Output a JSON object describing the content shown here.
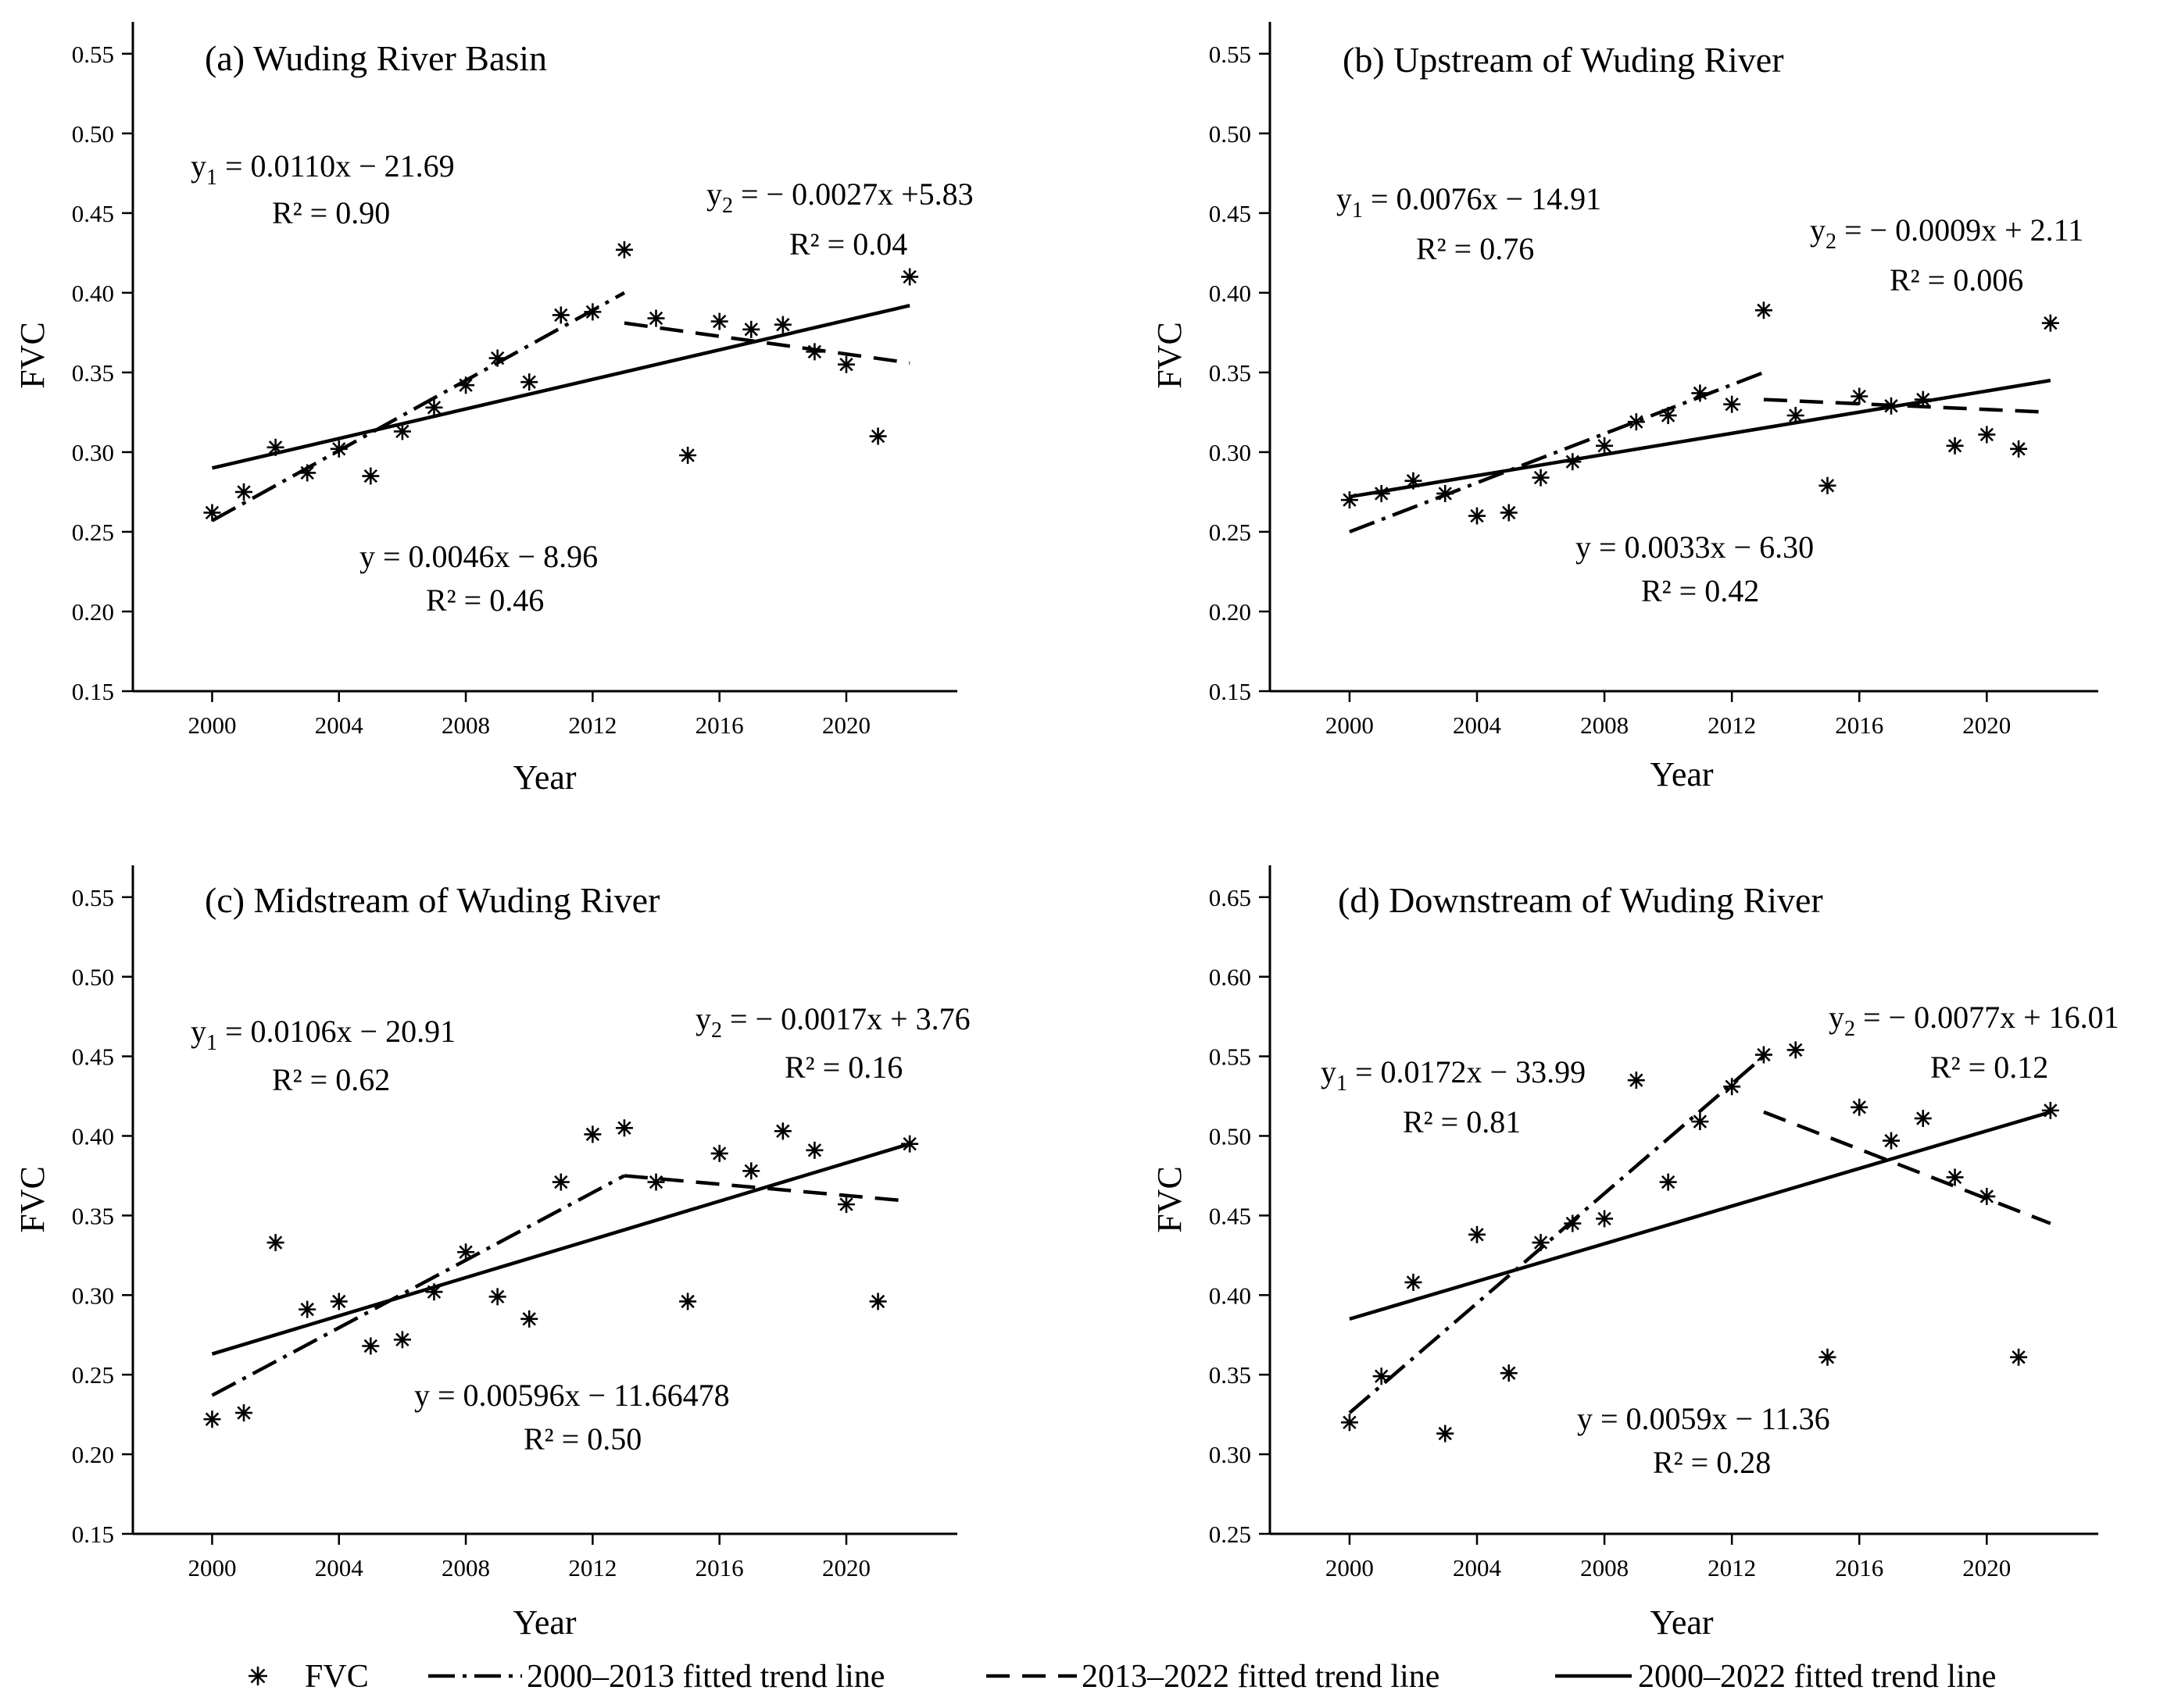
{
  "figure": {
    "legend": {
      "fvc": "FVC",
      "trend_2000_2013": "2000–2013 fitted trend line",
      "trend_2013_2022": "2013–2022 fitted trend line",
      "trend_2000_2022": "2000–2022 fitted trend line"
    }
  },
  "chart_data": [
    {
      "type": "scatter",
      "panel": "a",
      "title": "(a) Wuding River Basin",
      "xlabel": "Year",
      "ylabel": "FVC",
      "xlim": [
        1997.5,
        2023.5
      ],
      "ylim": [
        0.15,
        0.57
      ],
      "xticks": [
        2000,
        2004,
        2008,
        2012,
        2016,
        2020
      ],
      "xtick_labels": [
        "2000",
        "2004",
        "2008",
        "2012",
        "2016",
        "2020"
      ],
      "yticks": [
        0.15,
        0.2,
        0.25,
        0.3,
        0.35,
        0.4,
        0.45,
        0.5,
        0.55
      ],
      "ytick_labels": [
        "0.15",
        "0.20",
        "0.25",
        "0.30",
        "0.35",
        "0.40",
        "0.45",
        "0.50",
        "0.55"
      ],
      "x": [
        2000,
        2001,
        2002,
        2003,
        2004,
        2005,
        2006,
        2007,
        2008,
        2009,
        2010,
        2011,
        2012,
        2013,
        2014,
        2015,
        2016,
        2017,
        2018,
        2019,
        2020,
        2021,
        2022
      ],
      "fvc": [
        0.262,
        0.275,
        0.303,
        0.287,
        0.302,
        0.285,
        0.313,
        0.328,
        0.342,
        0.359,
        0.344,
        0.386,
        0.388,
        0.427,
        0.384,
        0.298,
        0.382,
        0.377,
        0.38,
        0.363,
        0.355,
        0.31,
        0.41
      ],
      "trend_lines": [
        {
          "name": "2000–2013 fitted trend line",
          "style": "dashdot",
          "x": [
            2000,
            2013
          ],
          "y": [
            0.257,
            0.4
          ]
        },
        {
          "name": "2013–2022 fitted trend line",
          "style": "dashed",
          "x": [
            2013,
            2022
          ],
          "y": [
            0.381,
            0.356
          ]
        },
        {
          "name": "2000–2022 fitted trend line",
          "style": "solid",
          "x": [
            2000,
            2022
          ],
          "y": [
            0.29,
            0.392
          ]
        }
      ],
      "annotations": {
        "eq1_y": "y",
        "eq1_sub": "1",
        "eq1_rest": " = 0.0110x − 21.69",
        "r2_1": "R² = 0.90",
        "eq2_y": "y",
        "eq2_sub": "2",
        "eq2_rest": " = − 0.0027x +5.83",
        "r2_2": "R² = 0.04",
        "eq3": "y = 0.0046x − 8.96",
        "r2_3": "R² = 0.46"
      }
    },
    {
      "type": "scatter",
      "panel": "b",
      "title": "(b) Upstream of  Wuding River",
      "xlabel": "Year",
      "ylabel": "FVC",
      "xlim": [
        1997.5,
        2023.5
      ],
      "ylim": [
        0.15,
        0.57
      ],
      "xticks": [
        2000,
        2004,
        2008,
        2012,
        2016,
        2020
      ],
      "xtick_labels": [
        "2000",
        "2004",
        "2008",
        "2012",
        "2016",
        "2020"
      ],
      "yticks": [
        0.15,
        0.2,
        0.25,
        0.3,
        0.35,
        0.4,
        0.45,
        0.5,
        0.55
      ],
      "ytick_labels": [
        "0.15",
        "0.20",
        "0.25",
        "0.30",
        "0.35",
        "0.40",
        "0.45",
        "0.50",
        "0.55"
      ],
      "x": [
        2000,
        2001,
        2002,
        2003,
        2004,
        2005,
        2006,
        2007,
        2008,
        2009,
        2010,
        2011,
        2012,
        2013,
        2014,
        2015,
        2016,
        2017,
        2018,
        2019,
        2020,
        2021,
        2022
      ],
      "fvc": [
        0.27,
        0.274,
        0.282,
        0.274,
        0.26,
        0.262,
        0.284,
        0.294,
        0.304,
        0.319,
        0.323,
        0.337,
        0.33,
        0.389,
        0.323,
        0.279,
        0.335,
        0.329,
        0.333,
        0.304,
        0.311,
        0.302,
        0.381
      ],
      "trend_lines": [
        {
          "name": "2000–2013 fitted trend line",
          "style": "dashdot",
          "x": [
            2000,
            2013
          ],
          "y": [
            0.25,
            0.35
          ]
        },
        {
          "name": "2013–2022 fitted trend line",
          "style": "dashed",
          "x": [
            2013,
            2022
          ],
          "y": [
            0.333,
            0.325
          ]
        },
        {
          "name": "2000–2022 fitted trend line",
          "style": "solid",
          "x": [
            2000,
            2022
          ],
          "y": [
            0.272,
            0.345
          ]
        }
      ],
      "annotations": {
        "eq1_y": "y",
        "eq1_sub": "1",
        "eq1_rest": " = 0.0076x − 14.91",
        "r2_1": "R² = 0.76",
        "eq2_y": "y",
        "eq2_sub": "2",
        "eq2_rest": " = − 0.0009x + 2.11",
        "r2_2": "R² = 0.006",
        "eq3": "y = 0.0033x − 6.30",
        "r2_3": "R² = 0.42"
      }
    },
    {
      "type": "scatter",
      "panel": "c",
      "title": "(c) Midstream of Wuding River",
      "xlabel": "Year",
      "ylabel": "FVC",
      "xlim": [
        1997.5,
        2023.5
      ],
      "ylim": [
        0.15,
        0.57
      ],
      "xticks": [
        2000,
        2004,
        2008,
        2012,
        2016,
        2020
      ],
      "xtick_labels": [
        "2000",
        "2004",
        "2008",
        "2012",
        "2016",
        "2020"
      ],
      "yticks": [
        0.15,
        0.2,
        0.25,
        0.3,
        0.35,
        0.4,
        0.45,
        0.5,
        0.55
      ],
      "ytick_labels": [
        "0.15",
        "0.20",
        "0.25",
        "0.30",
        "0.35",
        "0.40",
        "0.45",
        "0.50",
        "0.55"
      ],
      "x": [
        2000,
        2001,
        2002,
        2003,
        2004,
        2005,
        2006,
        2007,
        2008,
        2009,
        2010,
        2011,
        2012,
        2013,
        2014,
        2015,
        2016,
        2017,
        2018,
        2019,
        2020,
        2021,
        2022
      ],
      "fvc": [
        0.222,
        0.226,
        0.333,
        0.291,
        0.296,
        0.268,
        0.272,
        0.302,
        0.327,
        0.299,
        0.285,
        0.371,
        0.401,
        0.405,
        0.371,
        0.296,
        0.389,
        0.378,
        0.403,
        0.391,
        0.357,
        0.296,
        0.395
      ],
      "trend_lines": [
        {
          "name": "2000–2013 fitted trend line",
          "style": "dashdot",
          "x": [
            2000,
            2013
          ],
          "y": [
            0.237,
            0.375
          ]
        },
        {
          "name": "2013–2022 fitted trend line",
          "style": "dashed",
          "x": [
            2013,
            2022
          ],
          "y": [
            0.375,
            0.359
          ]
        },
        {
          "name": "2000–2022 fitted trend line",
          "style": "solid",
          "x": [
            2000,
            2022
          ],
          "y": [
            0.263,
            0.395
          ]
        }
      ],
      "annotations": {
        "eq1_y": "y",
        "eq1_sub": "1",
        "eq1_rest": " = 0.0106x − 20.91",
        "r2_1": "R² = 0.62",
        "eq2_y": "y",
        "eq2_sub": "2",
        "eq2_rest": " = − 0.0017x + 3.76",
        "r2_2": "R² = 0.16",
        "eq3": "y = 0.00596x − 11.66478",
        "r2_3": "R² = 0.50"
      }
    },
    {
      "type": "scatter",
      "panel": "d",
      "title": "(d) Downstream of Wuding River",
      "xlabel": "Year",
      "ylabel": "FVC",
      "xlim": [
        1997.5,
        2023.5
      ],
      "ylim": [
        0.25,
        0.67
      ],
      "xticks": [
        2000,
        2004,
        2008,
        2012,
        2016,
        2020
      ],
      "xtick_labels": [
        "2000",
        "2004",
        "2008",
        "2012",
        "2016",
        "2020"
      ],
      "yticks": [
        0.25,
        0.3,
        0.35,
        0.4,
        0.45,
        0.5,
        0.55,
        0.6,
        0.65
      ],
      "ytick_labels": [
        "0.25",
        "0.30",
        "0.35",
        "0.40",
        "0.45",
        "0.50",
        "0.55",
        "0.60",
        "0.65"
      ],
      "x": [
        2000,
        2001,
        2002,
        2003,
        2004,
        2005,
        2006,
        2007,
        2008,
        2009,
        2010,
        2011,
        2012,
        2013,
        2014,
        2015,
        2016,
        2017,
        2018,
        2019,
        2020,
        2021,
        2022
      ],
      "fvc": [
        0.32,
        0.349,
        0.408,
        0.313,
        0.438,
        0.351,
        0.433,
        0.445,
        0.448,
        0.535,
        0.471,
        0.509,
        0.531,
        0.551,
        0.554,
        0.361,
        0.518,
        0.497,
        0.511,
        0.474,
        0.462,
        0.361,
        0.516
      ],
      "trend_lines": [
        {
          "name": "2000–2013 fitted trend line",
          "style": "dashdot",
          "x": [
            2000,
            2013
          ],
          "y": [
            0.326,
            0.55
          ]
        },
        {
          "name": "2013–2022 fitted trend line",
          "style": "dashed",
          "x": [
            2013,
            2022
          ],
          "y": [
            0.515,
            0.445
          ]
        },
        {
          "name": "2000–2022 fitted trend line",
          "style": "solid",
          "x": [
            2000,
            2022
          ],
          "y": [
            0.385,
            0.515
          ]
        }
      ],
      "annotations": {
        "eq1_y": "y",
        "eq1_sub": "1",
        "eq1_rest": " = 0.0172x − 33.99",
        "r2_1": "R² = 0.81",
        "eq2_y": "y",
        "eq2_sub": "2",
        "eq2_rest": " = − 0.0077x + 16.01",
        "r2_2": "R² = 0.12",
        "eq3": "y = 0.0059x − 11.36",
        "r2_3": "R² = 0.28"
      }
    }
  ]
}
